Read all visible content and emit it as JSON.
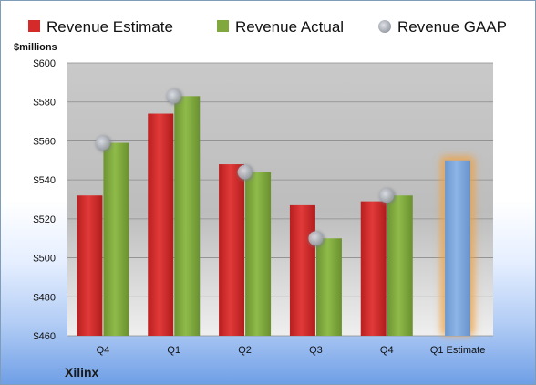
{
  "company": "Xilinx",
  "chart_data": {
    "type": "bar",
    "unit_label": "$millions",
    "categories": [
      "Q4",
      "Q1",
      "Q2",
      "Q3",
      "Q4",
      "Q1 Estimate"
    ],
    "series": [
      {
        "name": "Revenue Estimate",
        "color": "#d42a2a",
        "values": [
          532,
          574,
          548,
          527,
          529,
          null
        ]
      },
      {
        "name": "Revenue Actual",
        "color": "#80a83f",
        "values": [
          559,
          583,
          544,
          510,
          532,
          null
        ]
      },
      {
        "name": "Revenue GAAP",
        "color": "#b8bcc4",
        "type": "scatter",
        "values": [
          559,
          583,
          544,
          510,
          532,
          null
        ]
      }
    ],
    "highlight": {
      "category": "Q1 Estimate",
      "value": 550,
      "color": "#7aa7db",
      "glow": "#f0a040"
    },
    "ylim": [
      460,
      600
    ],
    "yticks": [
      "$460",
      "$480",
      "$500",
      "$520",
      "$540",
      "$560",
      "$580",
      "$600"
    ],
    "grid": true,
    "legend_position": "top"
  }
}
